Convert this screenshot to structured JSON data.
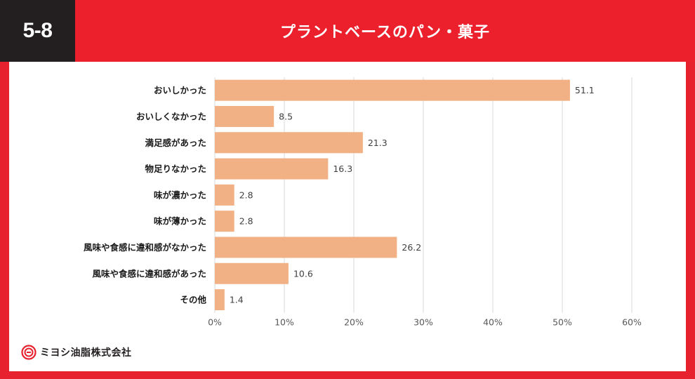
{
  "header": {
    "badge": "5-8",
    "title": "プラントベースのパン・菓子"
  },
  "colors": {
    "frame": "#e8212e",
    "badge_bg": "#231f20",
    "bar": "#f2b184",
    "grid": "#d9d9d9"
  },
  "logo": {
    "icon": "company-emblem-icon",
    "text": "ミヨシ油脂株式会社"
  },
  "chart_data": {
    "type": "bar",
    "orientation": "horizontal",
    "title": "プラントベースのパン・菓子",
    "categories": [
      "おいしかった",
      "おいしくなかった",
      "満足感があった",
      "物足りなかった",
      "味が濃かった",
      "味が薄かった",
      "風味や食感に違和感がなかった",
      "風味や食感に違和感があった",
      "その他"
    ],
    "values": [
      51.1,
      8.5,
      21.3,
      16.3,
      2.8,
      2.8,
      26.2,
      10.6,
      1.4
    ],
    "value_labels": [
      "51.1",
      "8.5",
      "21.3",
      "16.3",
      "2.8",
      "2.8",
      "26.2",
      "10.6",
      "1.4"
    ],
    "xlim": [
      0,
      60
    ],
    "xticks": [
      0,
      10,
      20,
      30,
      40,
      50,
      60
    ],
    "xtick_labels": [
      "0%",
      "10%",
      "20%",
      "30%",
      "40%",
      "50%",
      "60%"
    ],
    "xlabel": "",
    "ylabel": "",
    "grid": true,
    "legend": "none"
  }
}
